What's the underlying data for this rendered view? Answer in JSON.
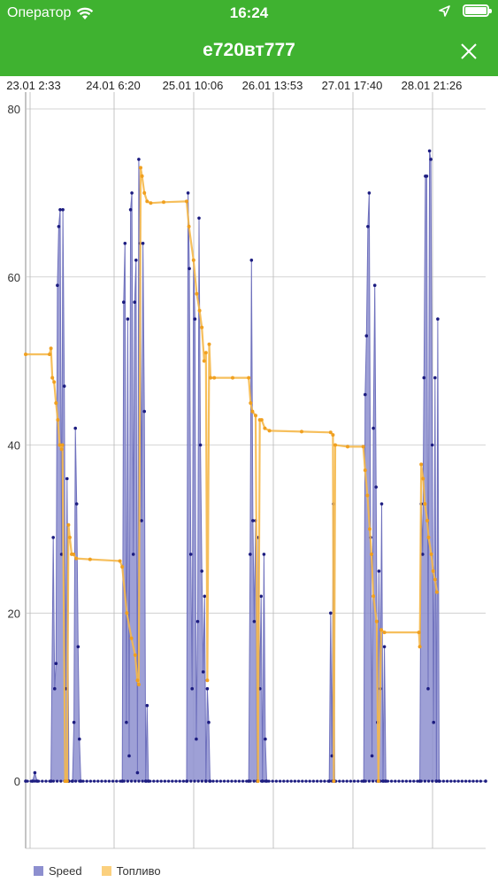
{
  "status_bar": {
    "carrier": "Оператор",
    "time": "16:24"
  },
  "header": {
    "title": "е720вт777"
  },
  "colors": {
    "header_bg": "#3fb230",
    "speed_line": "#7d7fc4",
    "speed_point": "#1c1c80",
    "fuel": "#f5a623"
  },
  "icons": {
    "wifi": "wifi-icon",
    "location": "location-arrow-icon",
    "battery": "battery-icon",
    "close": "close-icon"
  },
  "chart_data": {
    "type": "line",
    "x_tick_labels": [
      "23.01 2:33",
      "24.01 6:20",
      "25.01 10:06",
      "26.01 13:53",
      "27.01 17:40",
      "28.01 21:26"
    ],
    "x_range": [
      0,
      100
    ],
    "y_ticks": [
      0,
      20,
      40,
      60,
      80
    ],
    "ylim": [
      -8,
      82
    ],
    "grid": true,
    "legend_position": "bottom-left",
    "series": [
      {
        "name": "Speed",
        "type": "area",
        "points": [
          [
            0,
            0
          ],
          [
            1.5,
            0
          ],
          [
            2,
            1
          ],
          [
            2.5,
            0
          ],
          [
            5.5,
            0
          ],
          [
            6,
            29
          ],
          [
            6.3,
            11
          ],
          [
            6.6,
            14
          ],
          [
            6.9,
            59
          ],
          [
            7.2,
            66
          ],
          [
            7.5,
            68
          ],
          [
            7.8,
            27
          ],
          [
            8.1,
            68
          ],
          [
            8.4,
            47
          ],
          [
            8.7,
            11
          ],
          [
            9,
            36
          ],
          [
            9.4,
            0
          ],
          [
            10.2,
            0
          ],
          [
            10.5,
            7
          ],
          [
            10.8,
            42
          ],
          [
            11.1,
            33
          ],
          [
            11.4,
            16
          ],
          [
            11.7,
            5
          ],
          [
            12,
            0
          ],
          [
            21,
            0
          ],
          [
            21.3,
            57
          ],
          [
            21.6,
            64
          ],
          [
            21.9,
            7
          ],
          [
            22.2,
            55
          ],
          [
            22.5,
            3
          ],
          [
            22.8,
            68
          ],
          [
            23.1,
            70
          ],
          [
            23.4,
            27
          ],
          [
            23.7,
            57
          ],
          [
            24,
            62
          ],
          [
            24.3,
            1
          ],
          [
            24.6,
            74
          ],
          [
            24.9,
            64
          ],
          [
            25.2,
            31
          ],
          [
            25.5,
            64
          ],
          [
            25.8,
            44
          ],
          [
            26.1,
            0
          ],
          [
            26.4,
            9
          ],
          [
            26.7,
            0
          ],
          [
            35,
            0
          ],
          [
            35.3,
            70
          ],
          [
            35.6,
            61
          ],
          [
            35.9,
            27
          ],
          [
            36.2,
            11
          ],
          [
            36.5,
            62
          ],
          [
            36.8,
            55
          ],
          [
            37.1,
            5
          ],
          [
            37.4,
            19
          ],
          [
            37.7,
            67
          ],
          [
            38,
            40
          ],
          [
            38.3,
            25
          ],
          [
            38.6,
            13
          ],
          [
            38.9,
            22
          ],
          [
            39.2,
            0
          ],
          [
            39.5,
            11
          ],
          [
            39.8,
            7
          ],
          [
            40.1,
            0
          ],
          [
            48.5,
            0
          ],
          [
            48.8,
            27
          ],
          [
            49.1,
            62
          ],
          [
            49.4,
            31
          ],
          [
            49.7,
            19
          ],
          [
            50,
            31
          ],
          [
            50.3,
            0
          ],
          [
            50.6,
            29
          ],
          [
            50.9,
            11
          ],
          [
            51.2,
            22
          ],
          [
            51.5,
            0
          ],
          [
            51.8,
            27
          ],
          [
            52.1,
            5
          ],
          [
            52.4,
            0
          ],
          [
            66,
            0
          ],
          [
            66.3,
            20
          ],
          [
            66.6,
            3
          ],
          [
            66.9,
            33
          ],
          [
            67.2,
            0
          ],
          [
            73.5,
            0
          ],
          [
            73.8,
            46
          ],
          [
            74.1,
            53
          ],
          [
            74.4,
            66
          ],
          [
            74.7,
            70
          ],
          [
            75,
            29
          ],
          [
            75.3,
            3
          ],
          [
            75.6,
            42
          ],
          [
            75.9,
            59
          ],
          [
            76.2,
            35
          ],
          [
            76.5,
            7
          ],
          [
            76.8,
            25
          ],
          [
            77.1,
            11
          ],
          [
            77.4,
            33
          ],
          [
            77.7,
            0
          ],
          [
            78,
            16
          ],
          [
            78.3,
            0
          ],
          [
            85.7,
            0
          ],
          [
            86,
            33
          ],
          [
            86.3,
            27
          ],
          [
            86.6,
            48
          ],
          [
            86.9,
            72
          ],
          [
            87.2,
            72
          ],
          [
            87.5,
            11
          ],
          [
            87.8,
            75
          ],
          [
            88.1,
            74
          ],
          [
            88.4,
            40
          ],
          [
            88.7,
            7
          ],
          [
            89,
            48
          ],
          [
            89.3,
            0
          ],
          [
            89.6,
            55
          ],
          [
            89.9,
            0
          ],
          [
            100,
            0
          ]
        ]
      },
      {
        "name": "Топливо",
        "type": "line",
        "points": [
          [
            0,
            50.8
          ],
          [
            5.2,
            50.8
          ],
          [
            5.5,
            51.5
          ],
          [
            5.8,
            48
          ],
          [
            6.2,
            47.5
          ],
          [
            6.6,
            45
          ],
          [
            7,
            43
          ],
          [
            7.4,
            40
          ],
          [
            7.8,
            39.5
          ],
          [
            8,
            40
          ],
          [
            8.6,
            0
          ],
          [
            9,
            0
          ],
          [
            9.3,
            30.5
          ],
          [
            9.6,
            29
          ],
          [
            10,
            27
          ],
          [
            10.4,
            27
          ],
          [
            11,
            26.5
          ],
          [
            14,
            26.4
          ],
          [
            20.5,
            26.2
          ],
          [
            21,
            25.5
          ],
          [
            22,
            20
          ],
          [
            23,
            17
          ],
          [
            23.8,
            15
          ],
          [
            24.3,
            12
          ],
          [
            24.6,
            11.5
          ],
          [
            25,
            73
          ],
          [
            25.3,
            72
          ],
          [
            25.8,
            70
          ],
          [
            26.4,
            69
          ],
          [
            27.2,
            68.8
          ],
          [
            30,
            68.9
          ],
          [
            35,
            69
          ],
          [
            35.5,
            66
          ],
          [
            36.5,
            62
          ],
          [
            37.2,
            58
          ],
          [
            37.8,
            56
          ],
          [
            38.3,
            54
          ],
          [
            38.8,
            50
          ],
          [
            39.2,
            51
          ],
          [
            39.5,
            12
          ],
          [
            39.9,
            52
          ],
          [
            40.2,
            48
          ],
          [
            41,
            48
          ],
          [
            45,
            48
          ],
          [
            48.5,
            48
          ],
          [
            48.9,
            45
          ],
          [
            49.3,
            44
          ],
          [
            50,
            43.5
          ],
          [
            50.5,
            0
          ],
          [
            50.9,
            43
          ],
          [
            51.3,
            43
          ],
          [
            52,
            42
          ],
          [
            53,
            41.7
          ],
          [
            60,
            41.6
          ],
          [
            66.3,
            41.5
          ],
          [
            66.8,
            41.2
          ],
          [
            67,
            0
          ],
          [
            67.3,
            40
          ],
          [
            70,
            39.8
          ],
          [
            73.4,
            39.8
          ],
          [
            73.8,
            37
          ],
          [
            74.3,
            34
          ],
          [
            74.8,
            30
          ],
          [
            75.2,
            27
          ],
          [
            75.6,
            22
          ],
          [
            76.3,
            19
          ],
          [
            76.7,
            0
          ],
          [
            77.3,
            18
          ],
          [
            78,
            17.7
          ],
          [
            85.5,
            17.7
          ],
          [
            85.7,
            16
          ],
          [
            86,
            37.7
          ],
          [
            86.4,
            36
          ],
          [
            86.8,
            33
          ],
          [
            87.3,
            31
          ],
          [
            87.6,
            29
          ],
          [
            88.2,
            27
          ],
          [
            88.6,
            25
          ],
          [
            89,
            24
          ],
          [
            89.4,
            22.5
          ]
        ]
      }
    ]
  }
}
